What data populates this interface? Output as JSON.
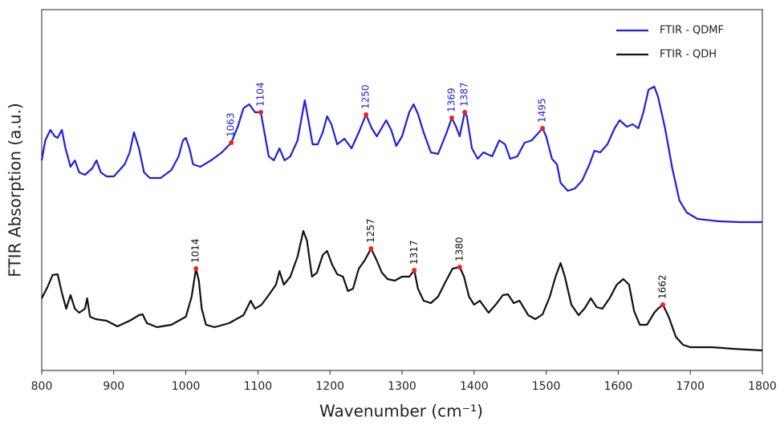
{
  "chart_data": {
    "type": "line",
    "xlabel": "Wavenumber (cm⁻¹)",
    "ylabel": "FTIR Absorption (a.u.)",
    "xlim": [
      800,
      1800
    ],
    "xticks": [
      800,
      900,
      1000,
      1100,
      1200,
      1300,
      1400,
      1500,
      1600,
      1700,
      1800
    ],
    "ylim": [
      0,
      450
    ],
    "legend": "upper right",
    "peak_color": "#ff1a1a",
    "series": [
      {
        "name": "FTIR - QDMF",
        "color": "#1f1fe0",
        "x": [
          800,
          805,
          812,
          818,
          822,
          828,
          833,
          840,
          846,
          852,
          860,
          870,
          876,
          882,
          890,
          900,
          915,
          922,
          928,
          935,
          942,
          950,
          965,
          980,
          990,
          996,
          1000,
          1005,
          1010,
          1020,
          1035,
          1050,
          1063,
          1072,
          1080,
          1088,
          1096,
          1104,
          1108,
          1115,
          1122,
          1130,
          1137,
          1145,
          1155,
          1160,
          1165,
          1170,
          1176,
          1183,
          1190,
          1196,
          1202,
          1210,
          1220,
          1230,
          1240,
          1250,
          1258,
          1265,
          1278,
          1285,
          1292,
          1300,
          1310,
          1316,
          1322,
          1330,
          1340,
          1350,
          1362,
          1369,
          1375,
          1380,
          1387,
          1390,
          1397,
          1405,
          1413,
          1425,
          1435,
          1443,
          1450,
          1460,
          1470,
          1480,
          1495,
          1500,
          1508,
          1515,
          1520,
          1530,
          1540,
          1550,
          1560,
          1567,
          1575,
          1585,
          1595,
          1602,
          1612,
          1620,
          1628,
          1635,
          1642,
          1650,
          1655,
          1665,
          1675,
          1685,
          1695,
          1710,
          1740,
          1770,
          1800
        ],
        "values": [
          262,
          287,
          300,
          292,
          290,
          300,
          277,
          254,
          262,
          247,
          244,
          252,
          262,
          247,
          242,
          242,
          257,
          272,
          297,
          277,
          247,
          240,
          240,
          250,
          267,
          287,
          290,
          277,
          257,
          254,
          262,
          272,
          284,
          304,
          327,
          332,
          322,
          322,
          302,
          267,
          262,
          277,
          262,
          267,
          287,
          312,
          337,
          312,
          282,
          282,
          297,
          317,
          307,
          282,
          289,
          277,
          297,
          319,
          302,
          292,
          312,
          300,
          280,
          292,
          322,
          332,
          320,
          297,
          272,
          270,
          297,
          315,
          304,
          292,
          322,
          317,
          277,
          264,
          272,
          267,
          287,
          282,
          264,
          267,
          284,
          287,
          302,
          292,
          264,
          257,
          234,
          224,
          227,
          237,
          257,
          274,
          272,
          282,
          302,
          312,
          304,
          307,
          302,
          322,
          350,
          354,
          342,
          302,
          252,
          212,
          197,
          189,
          186,
          185,
          185
        ],
        "peaks": [
          1063,
          1104,
          1250,
          1369,
          1387,
          1495
        ],
        "peak_values": [
          284,
          322,
          319,
          315,
          322,
          302
        ]
      },
      {
        "name": "FTIR - QDH",
        "color": "#111111",
        "x": [
          800,
          808,
          815,
          822,
          828,
          834,
          840,
          846,
          852,
          860,
          863,
          867,
          875,
          890,
          905,
          922,
          935,
          940,
          946,
          960,
          980,
          1000,
          1008,
          1014,
          1018,
          1022,
          1028,
          1040,
          1060,
          1080,
          1090,
          1096,
          1105,
          1115,
          1125,
          1130,
          1136,
          1145,
          1155,
          1163,
          1168,
          1175,
          1182,
          1190,
          1196,
          1203,
          1210,
          1218,
          1225,
          1232,
          1240,
          1248,
          1257,
          1265,
          1272,
          1280,
          1290,
          1300,
          1310,
          1317,
          1322,
          1330,
          1340,
          1350,
          1360,
          1370,
          1380,
          1386,
          1393,
          1400,
          1408,
          1420,
          1430,
          1440,
          1447,
          1455,
          1463,
          1475,
          1485,
          1495,
          1505,
          1513,
          1520,
          1526,
          1535,
          1545,
          1553,
          1562,
          1570,
          1578,
          1588,
          1598,
          1607,
          1615,
          1622,
          1630,
          1640,
          1650,
          1655,
          1662,
          1670,
          1680,
          1690,
          1700,
          1730,
          1760,
          1800
        ],
        "values": [
          90,
          104,
          119,
          120,
          97,
          77,
          94,
          77,
          72,
          77,
          90,
          67,
          64,
          62,
          55,
          62,
          69,
          70,
          59,
          54,
          57,
          67,
          92,
          127,
          112,
          77,
          57,
          54,
          59,
          69,
          87,
          77,
          82,
          94,
          107,
          124,
          107,
          117,
          142,
          174,
          162,
          117,
          122,
          144,
          149,
          132,
          120,
          117,
          99,
          102,
          127,
          137,
          152,
          137,
          122,
          114,
          112,
          117,
          117,
          125,
          102,
          87,
          84,
          92,
          110,
          127,
          129,
          117,
          92,
          82,
          87,
          72,
          82,
          94,
          95,
          84,
          87,
          69,
          64,
          70,
          92,
          117,
          134,
          117,
          82,
          69,
          77,
          90,
          79,
          77,
          90,
          107,
          114,
          107,
          74,
          57,
          57,
          72,
          77,
          82,
          67,
          42,
          32,
          29,
          29,
          27,
          25
        ],
        "peaks": [
          1014,
          1257,
          1317,
          1380,
          1662
        ],
        "peak_values": [
          127,
          152,
          125,
          129,
          82
        ]
      }
    ]
  }
}
